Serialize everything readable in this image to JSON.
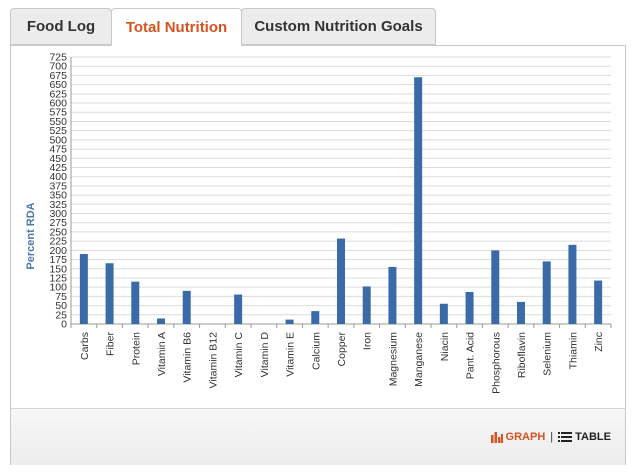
{
  "tabs": [
    {
      "label": "Food Log",
      "active": false
    },
    {
      "label": "Total Nutrition",
      "active": true
    },
    {
      "label": "Custom Nutrition Goals",
      "active": false
    }
  ],
  "view_toggle": {
    "graph_label": "GRAPH",
    "separator": "|",
    "table_label": "TABLE",
    "graph_icon": "bar-chart-icon",
    "table_icon": "list-icon"
  },
  "colors": {
    "accent": "#d4531f",
    "bar": "#3a6aa8",
    "axis_label": "#4d7aad"
  },
  "chart_data": {
    "type": "bar",
    "ylabel": "Percent RDA",
    "xlabel": "",
    "ylim": [
      0,
      725
    ],
    "ytick_step": 25,
    "grid": true,
    "categories": [
      "Carbs",
      "Fiber",
      "Protein",
      "Vitamin A",
      "Vitamin B6",
      "Vitamin B12",
      "Vitamin C",
      "Vitamin D",
      "Vitamin E",
      "Calcium",
      "Copper",
      "Iron",
      "Magnesium",
      "Manganese",
      "Niacin",
      "Pant. Acid",
      "Phosphorous",
      "Riboflavin",
      "Selenium",
      "Thiamin",
      "Zinc"
    ],
    "values": [
      190,
      165,
      115,
      15,
      90,
      0,
      80,
      0,
      12,
      35,
      232,
      102,
      155,
      670,
      55,
      87,
      200,
      60,
      170,
      215,
      118
    ]
  }
}
